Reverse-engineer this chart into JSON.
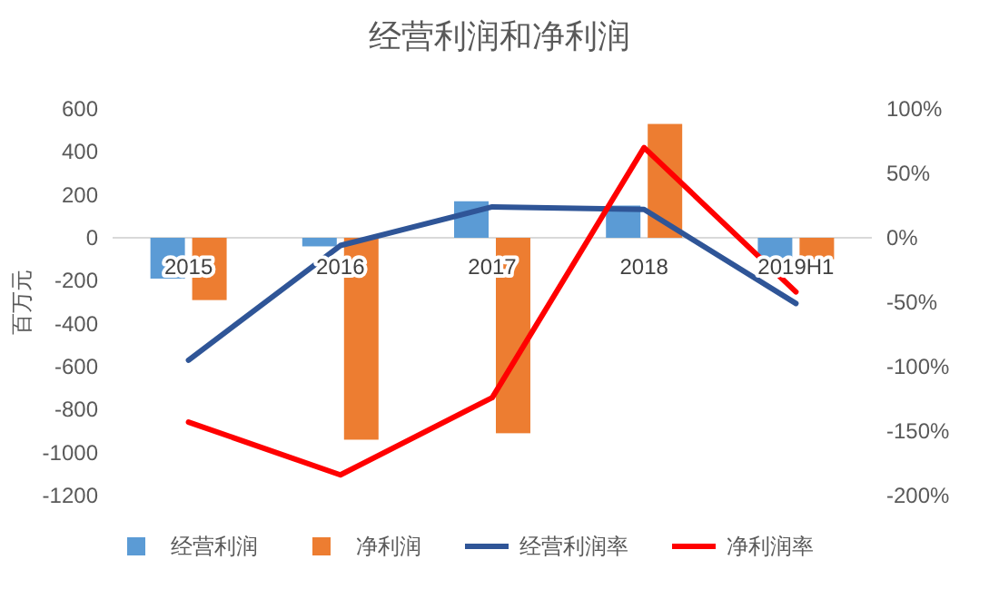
{
  "chart_data": {
    "type": "bar",
    "title": "经营利润和净利润",
    "ylabel": "百万元",
    "categories": [
      "2015",
      "2016",
      "2017",
      "2018",
      "2019H1"
    ],
    "series": [
      {
        "name": "经营利润",
        "color": "#5b9bd5",
        "values": [
          -190,
          -40,
          170,
          150,
          -100
        ]
      },
      {
        "name": "净利润",
        "color": "#ed7d31",
        "values": [
          -290,
          -940,
          -910,
          530,
          -100
        ]
      },
      {
        "name": "经营利润率",
        "type": "line",
        "axis": "y2",
        "color": "#2f5597",
        "values": [
          -95,
          -6,
          24,
          22,
          -51
        ]
      },
      {
        "name": "净利润率",
        "type": "line",
        "axis": "y2",
        "color": "#ff0000",
        "values": [
          -143,
          -184,
          -124,
          70,
          -42
        ]
      }
    ],
    "ylim": [
      -1200,
      600
    ],
    "yticks": [
      -1200,
      -1000,
      -800,
      -600,
      -400,
      -200,
      0,
      200,
      400,
      600
    ],
    "y2lim": [
      -200,
      100
    ],
    "y2ticks": [
      {
        "value": -200,
        "label": "-200%"
      },
      {
        "value": -150,
        "label": "-150%"
      },
      {
        "value": -100,
        "label": "-100%"
      },
      {
        "value": -50,
        "label": "-50%"
      },
      {
        "value": 0,
        "label": "0%"
      },
      {
        "value": 50,
        "label": "50%"
      },
      {
        "value": 100,
        "label": "100%"
      }
    ],
    "legend": "bottom",
    "grid": false,
    "marker": "none",
    "line_style": "solid"
  }
}
